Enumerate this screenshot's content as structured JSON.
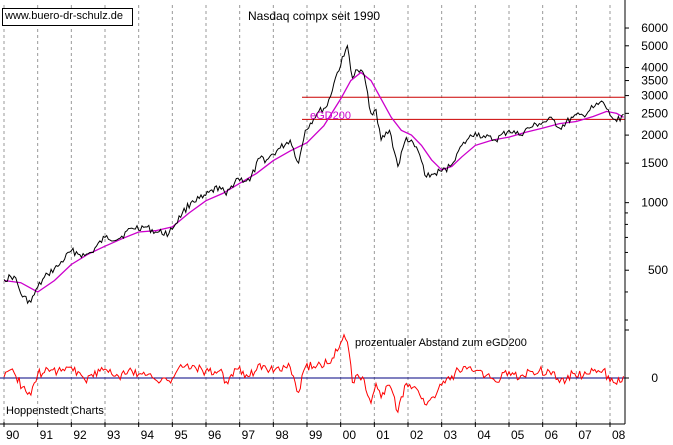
{
  "header": {
    "url": "www.buero-dr-schulz.de",
    "title": "Nasdaq compx seit 1990",
    "source": "Hoppenstedt Charts"
  },
  "colors": {
    "price": "#000000",
    "ma": "#cc00cc",
    "oscillator": "#ff0000",
    "hlines": "#cc0000",
    "zero_line": "#000080",
    "grid": "#999999"
  },
  "chart_data": [
    {
      "type": "line",
      "title": "Nasdaq compx seit 1990",
      "x_ticks": [
        "90",
        "91",
        "92",
        "93",
        "94",
        "95",
        "96",
        "97",
        "98",
        "99",
        "00",
        "01",
        "02",
        "03",
        "04",
        "05",
        "06",
        "07",
        "08"
      ],
      "y_scale": "log",
      "ylim": [
        300,
        7000
      ],
      "y_ticks": [
        500,
        1000,
        1500,
        2000,
        2500,
        3000,
        3500,
        4000,
        5000,
        6000
      ],
      "grid": "vertical dashed",
      "horizontal_lines": [
        2950,
        2350
      ],
      "series": [
        {
          "name": "",
          "role": "price",
          "x": [
            1990.0,
            1990.3,
            1990.55,
            1990.8,
            1991.0,
            1991.3,
            1991.6,
            1992.0,
            1992.4,
            1992.6,
            1993.0,
            1993.4,
            1993.8,
            1994.2,
            1994.5,
            1994.9,
            1995.3,
            1995.6,
            1995.9,
            1996.4,
            1996.6,
            1996.9,
            1997.3,
            1997.6,
            1997.8,
            1998.2,
            1998.5,
            1998.75,
            1998.95,
            1999.3,
            1999.6,
            1999.9,
            2000.1,
            2000.2,
            2000.35,
            2000.5,
            2000.7,
            2000.9,
            2001.05,
            2001.2,
            2001.45,
            2001.7,
            2001.95,
            2002.3,
            2002.55,
            2002.8,
            2003.0,
            2003.25,
            2003.5,
            2003.75,
            2004.0,
            2004.3,
            2004.6,
            2005.0,
            2005.3,
            2005.6,
            2005.9,
            2006.3,
            2006.5,
            2006.9,
            2007.2,
            2007.5,
            2007.8,
            2008.0,
            2008.2,
            2008.4
          ],
          "y": [
            455,
            470,
            380,
            360,
            420,
            480,
            520,
            610,
            580,
            600,
            700,
            690,
            770,
            780,
            740,
            730,
            900,
            1020,
            1050,
            1180,
            1080,
            1280,
            1250,
            1580,
            1550,
            1750,
            1900,
            1500,
            2100,
            2500,
            2700,
            3800,
            4500,
            5000,
            3600,
            3900,
            3700,
            2500,
            2600,
            1900,
            2100,
            1450,
            1950,
            1700,
            1300,
            1350,
            1380,
            1450,
            1700,
            1900,
            2050,
            1950,
            1900,
            2100,
            2000,
            2150,
            2250,
            2350,
            2150,
            2400,
            2450,
            2650,
            2800,
            2450,
            2300,
            2480
          ]
        },
        {
          "name": "eGD200",
          "role": "moving-average",
          "x": [
            1990.0,
            1990.5,
            1991.0,
            1991.5,
            1992.0,
            1992.5,
            1993.0,
            1993.5,
            1994.0,
            1994.5,
            1995.0,
            1995.5,
            1996.0,
            1996.5,
            1997.0,
            1997.5,
            1998.0,
            1998.5,
            1999.0,
            1999.5,
            2000.0,
            2000.3,
            2000.6,
            2000.9,
            2001.2,
            2001.5,
            2001.8,
            2002.1,
            2002.4,
            2002.7,
            2003.0,
            2003.3,
            2003.6,
            2004.0,
            2004.5,
            2005.0,
            2005.5,
            2006.0,
            2006.5,
            2007.0,
            2007.5,
            2007.9,
            2008.2,
            2008.4
          ],
          "y": [
            450,
            440,
            400,
            450,
            530,
            590,
            640,
            690,
            740,
            750,
            780,
            900,
            1020,
            1100,
            1220,
            1350,
            1540,
            1700,
            1850,
            2200,
            2900,
            3500,
            3800,
            3500,
            2900,
            2400,
            2100,
            2000,
            1800,
            1550,
            1400,
            1450,
            1600,
            1800,
            1900,
            1960,
            2060,
            2150,
            2250,
            2300,
            2420,
            2550,
            2500,
            2400
          ]
        }
      ]
    },
    {
      "type": "line",
      "title": "prozentualer Abstand zum eGD200",
      "ylim": [
        -60,
        60
      ],
      "y_ticks": [
        0
      ],
      "series": [
        {
          "name": "",
          "role": "oscillator",
          "x": [
            1990.0,
            1990.3,
            1990.55,
            1990.8,
            1991.0,
            1991.3,
            1991.6,
            1992.0,
            1992.4,
            1992.6,
            1993.0,
            1993.4,
            1993.8,
            1994.2,
            1994.5,
            1994.9,
            1995.3,
            1995.6,
            1995.9,
            1996.4,
            1996.6,
            1996.9,
            1997.3,
            1997.6,
            1997.8,
            1998.2,
            1998.5,
            1998.75,
            1998.95,
            1999.3,
            1999.6,
            1999.9,
            2000.1,
            2000.2,
            2000.35,
            2000.5,
            2000.7,
            2000.9,
            2001.05,
            2001.2,
            2001.45,
            2001.7,
            2001.95,
            2002.3,
            2002.55,
            2002.8,
            2003.0,
            2003.25,
            2003.5,
            2003.75,
            2004.0,
            2004.3,
            2004.6,
            2005.0,
            2005.3,
            2005.6,
            2005.9,
            2006.3,
            2006.5,
            2006.9,
            2007.2,
            2007.5,
            2007.8,
            2008.0,
            2008.2,
            2008.4
          ],
          "y": [
            1,
            6,
            -10,
            -19,
            4,
            10,
            8,
            12,
            -2,
            4,
            10,
            2,
            8,
            3,
            -2,
            -3,
            12,
            14,
            8,
            8,
            -4,
            10,
            2,
            16,
            10,
            8,
            12,
            -16,
            12,
            14,
            16,
            30,
            48,
            40,
            -5,
            4,
            -2,
            -28,
            -6,
            -22,
            -8,
            -38,
            -6,
            -14,
            -30,
            -22,
            -8,
            -2,
            9,
            10,
            8,
            2,
            -4,
            7,
            -1,
            8,
            8,
            7,
            -5,
            5,
            2,
            8,
            9,
            -4,
            -7,
            2
          ]
        }
      ]
    }
  ]
}
